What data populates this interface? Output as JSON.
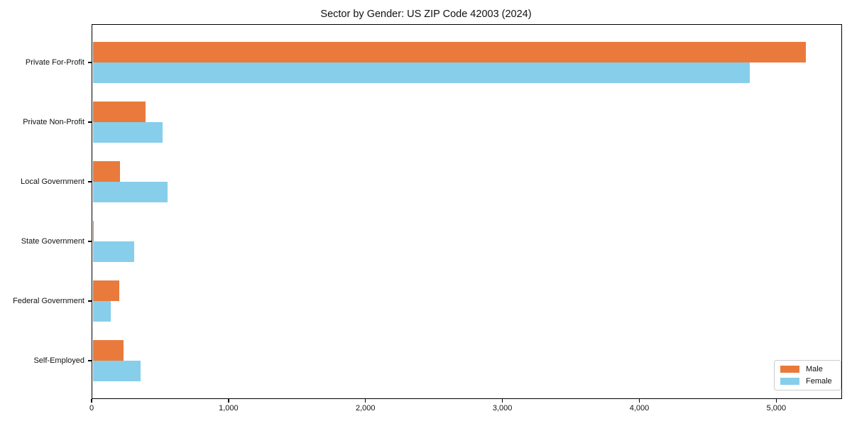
{
  "chart_data": {
    "type": "bar",
    "orientation": "horizontal",
    "title": "Sector by Gender: US ZIP Code 42003 (2024)",
    "categories": [
      "Private For-Profit",
      "Private Non-Profit",
      "Local Government",
      "State Government",
      "Federal Government",
      "Self-Employed"
    ],
    "series": [
      {
        "name": "Male",
        "color": "#E97A3C",
        "values": [
          5210,
          385,
          200,
          8,
          195,
          225
        ]
      },
      {
        "name": "Female",
        "color": "#87CEEB",
        "values": [
          4800,
          510,
          545,
          305,
          130,
          350
        ]
      }
    ],
    "x_ticks": [
      "0",
      "1,000",
      "2,000",
      "3,000",
      "4,000",
      "5,000"
    ],
    "x_tick_values": [
      0,
      1000,
      2000,
      3000,
      4000,
      5000
    ],
    "xlim": [
      0,
      5470
    ],
    "xlabel": "",
    "ylabel": "",
    "grid": false,
    "legend_position": "lower right",
    "legend_entries": [
      "Male",
      "Female"
    ]
  }
}
